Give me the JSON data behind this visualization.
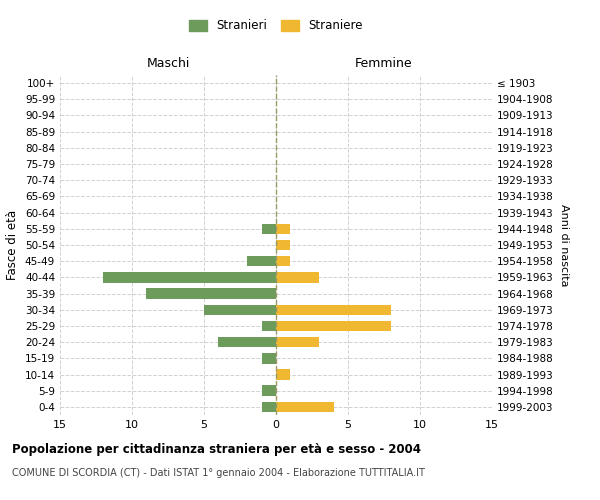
{
  "age_groups": [
    "0-4",
    "5-9",
    "10-14",
    "15-19",
    "20-24",
    "25-29",
    "30-34",
    "35-39",
    "40-44",
    "45-49",
    "50-54",
    "55-59",
    "60-64",
    "65-69",
    "70-74",
    "75-79",
    "80-84",
    "85-89",
    "90-94",
    "95-99",
    "100+"
  ],
  "birth_years": [
    "1999-2003",
    "1994-1998",
    "1989-1993",
    "1984-1988",
    "1979-1983",
    "1974-1978",
    "1969-1973",
    "1964-1968",
    "1959-1963",
    "1954-1958",
    "1949-1953",
    "1944-1948",
    "1939-1943",
    "1934-1938",
    "1929-1933",
    "1924-1928",
    "1919-1923",
    "1914-1918",
    "1909-1913",
    "1904-1908",
    "≤ 1903"
  ],
  "males": [
    1,
    1,
    0,
    1,
    4,
    1,
    5,
    9,
    12,
    2,
    0,
    1,
    0,
    0,
    0,
    0,
    0,
    0,
    0,
    0,
    0
  ],
  "females": [
    4,
    0,
    1,
    0,
    3,
    8,
    8,
    0,
    3,
    1,
    1,
    1,
    0,
    0,
    0,
    0,
    0,
    0,
    0,
    0,
    0
  ],
  "male_color": "#6d9b5c",
  "female_color": "#f0b830",
  "title": "Popolazione per cittadinanza straniera per età e sesso - 2004",
  "subtitle": "COMUNE DI SCORDIA (CT) - Dati ISTAT 1° gennaio 2004 - Elaborazione TUTTITALIA.IT",
  "ylabel_left": "Fasce di età",
  "ylabel_right": "Anni di nascita",
  "xlim": 15,
  "legend_stranieri": "Stranieri",
  "legend_straniere": "Straniere",
  "maschi_label": "Maschi",
  "femmine_label": "Femmine",
  "background_color": "#ffffff",
  "grid_color": "#cccccc"
}
